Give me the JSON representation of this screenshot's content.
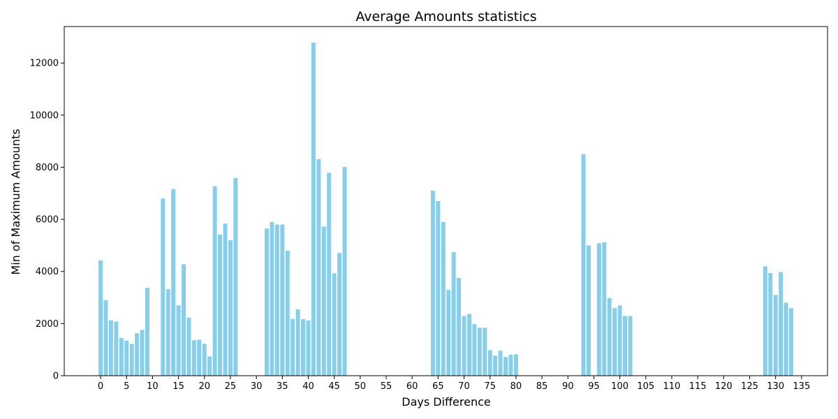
{
  "chart_data": {
    "type": "bar",
    "title": "Average Amounts statistics",
    "xlabel": "Days Difference",
    "ylabel": "Min of Maximum Amounts",
    "xlim": [
      -7,
      140
    ],
    "ylim": [
      0,
      13400
    ],
    "x_ticks": [
      0,
      5,
      10,
      15,
      20,
      25,
      30,
      35,
      40,
      45,
      50,
      55,
      60,
      65,
      70,
      75,
      80,
      85,
      90,
      95,
      100,
      105,
      110,
      115,
      120,
      125,
      130,
      135
    ],
    "y_ticks": [
      0,
      2000,
      4000,
      6000,
      8000,
      10000,
      12000
    ],
    "bar_color": "#87CEEB",
    "grid": false,
    "x": [
      0,
      1,
      2,
      3,
      4,
      5,
      6,
      7,
      8,
      9,
      12,
      13,
      14,
      15,
      16,
      17,
      18,
      19,
      20,
      21,
      22,
      23,
      24,
      25,
      26,
      32,
      33,
      34,
      35,
      36,
      37,
      38,
      39,
      40,
      41,
      42,
      43,
      44,
      45,
      46,
      47,
      64,
      65,
      66,
      67,
      68,
      69,
      70,
      71,
      72,
      73,
      74,
      75,
      76,
      77,
      78,
      79,
      80,
      93,
      94,
      96,
      97,
      98,
      99,
      100,
      101,
      102,
      128,
      129,
      130,
      131,
      132,
      133
    ],
    "values": [
      4420,
      2900,
      2130,
      2080,
      1450,
      1350,
      1220,
      1630,
      1760,
      3370,
      6800,
      3320,
      7160,
      2700,
      4280,
      2230,
      1360,
      1380,
      1220,
      740,
      7270,
      5420,
      5840,
      5200,
      7590,
      5650,
      5900,
      5800,
      5800,
      4800,
      2180,
      2540,
      2170,
      2120,
      12780,
      8310,
      5720,
      7790,
      3930,
      4710,
      8010,
      7100,
      6700,
      5900,
      3290,
      4740,
      3750,
      2290,
      2370,
      1980,
      1840,
      1840,
      980,
      770,
      960,
      720,
      800,
      820,
      8500,
      5000,
      5080,
      5120,
      2980,
      2590,
      2700,
      2290,
      2290,
      4200,
      3940,
      3100,
      3980,
      2800,
      2590
    ]
  }
}
